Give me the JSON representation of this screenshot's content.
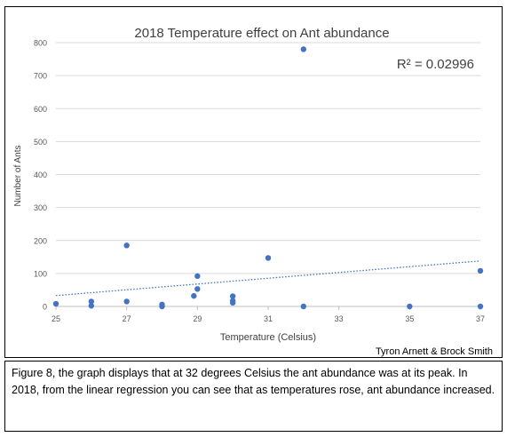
{
  "chart_data": {
    "type": "scatter",
    "title": "2018 Temperature effect on Ant abundance",
    "xlabel": "Temperature (Celsius)",
    "ylabel": "Number of Ants",
    "xlim": [
      25,
      37
    ],
    "ylim": [
      0,
      800
    ],
    "xticks": [
      25,
      27,
      29,
      31,
      33,
      35,
      37
    ],
    "yticks": [
      0,
      100,
      200,
      300,
      400,
      500,
      600,
      700,
      800
    ],
    "grid": "horizontal",
    "legend": "none",
    "point_color": "#4472c4",
    "trendline": {
      "type": "linear",
      "y_at_xmin": 33,
      "y_at_xmax": 138,
      "color": "#4472c4",
      "style": "dotted"
    },
    "annotation": "R² = 0.02996",
    "points": [
      {
        "x": 25,
        "y": 8
      },
      {
        "x": 26,
        "y": 15
      },
      {
        "x": 26,
        "y": 2
      },
      {
        "x": 27,
        "y": 185
      },
      {
        "x": 27,
        "y": 15
      },
      {
        "x": 28,
        "y": 6
      },
      {
        "x": 28,
        "y": 0
      },
      {
        "x": 28.9,
        "y": 32
      },
      {
        "x": 29,
        "y": 92
      },
      {
        "x": 29,
        "y": 53
      },
      {
        "x": 30,
        "y": 31
      },
      {
        "x": 30,
        "y": 17
      },
      {
        "x": 30,
        "y": 11
      },
      {
        "x": 31,
        "y": 147
      },
      {
        "x": 32,
        "y": 780
      },
      {
        "x": 32,
        "y": 0
      },
      {
        "x": 35,
        "y": 0
      },
      {
        "x": 37,
        "y": 108
      },
      {
        "x": 37,
        "y": 0
      }
    ]
  },
  "credit": "Tyron Arnett & Brock Smith",
  "caption": "Figure 8, the graph displays that at 32 degrees Celsius the ant abundance was at its peak. In 2018, from the linear regression you can see that as temperatures rose, ant abundance increased."
}
